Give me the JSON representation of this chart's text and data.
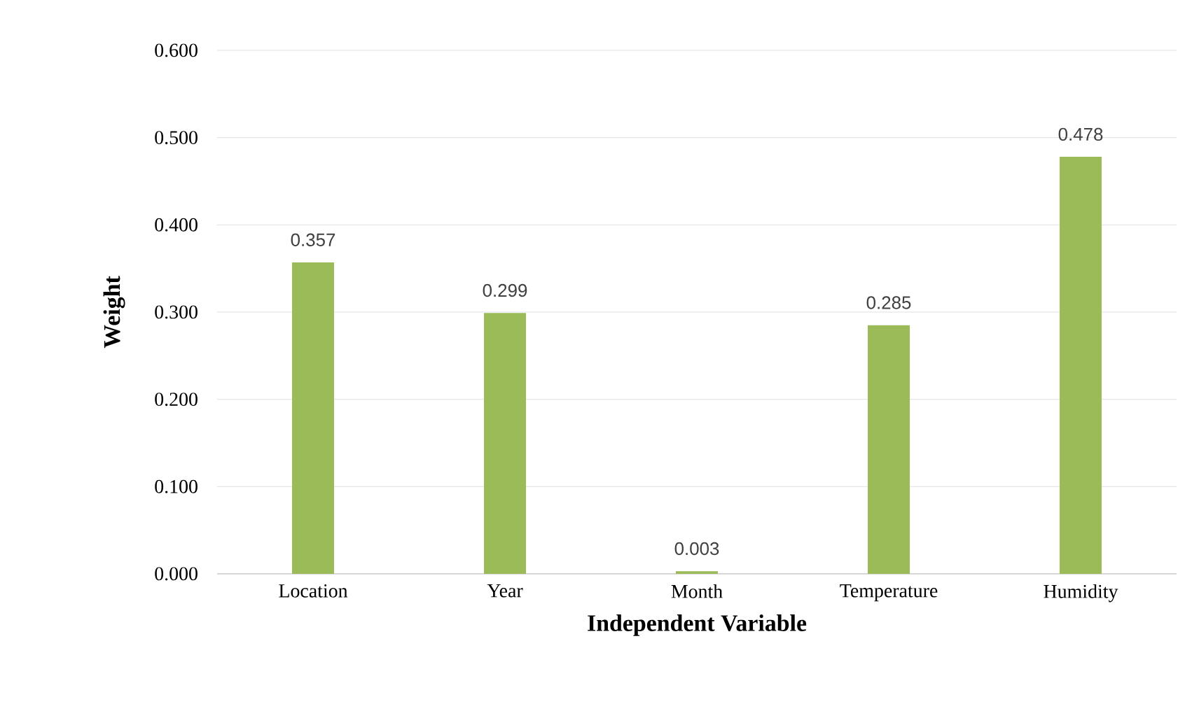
{
  "chart_data": {
    "type": "bar",
    "xlabel": "Independent Variable",
    "ylabel": "Weight",
    "categories": [
      "Location",
      "Year",
      "Month",
      "Temperature",
      "Humidity"
    ],
    "values": [
      0.357,
      0.299,
      0.003,
      0.285,
      0.478
    ],
    "color": "#9bbb59",
    "data_labels": true,
    "grid": "y",
    "legend": false,
    "ylim": [
      0,
      0.6
    ],
    "yticks": [
      {
        "value": 0,
        "label": "0.000"
      },
      {
        "value": 0.1,
        "label": "0.100"
      },
      {
        "value": 0.2,
        "label": "0.200"
      },
      {
        "value": 0.3,
        "label": "0.300"
      },
      {
        "value": 0.4,
        "label": "0.400"
      },
      {
        "value": 0.5,
        "label": "0.500"
      },
      {
        "value": 0.6,
        "label": "0.600"
      }
    ]
  }
}
